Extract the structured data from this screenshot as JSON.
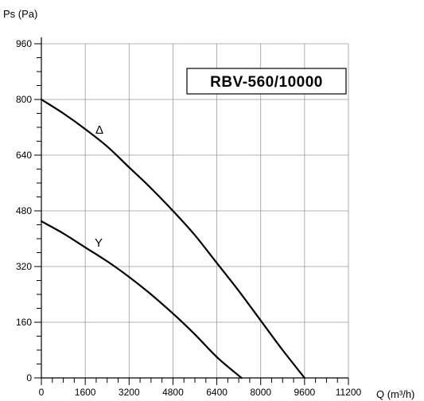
{
  "chart_data": {
    "type": "line",
    "title": "",
    "model": "RBV-560/10000",
    "ylabel": "Ps (Pa)",
    "xlabel": "Q (m³/h)",
    "xlim": [
      0,
      11200
    ],
    "ylim": [
      0,
      960
    ],
    "x_ticks": [
      "0",
      "1600",
      "3200",
      "4800",
      "6400",
      "8000",
      "9600",
      "11200"
    ],
    "y_ticks": [
      "0",
      "160",
      "320",
      "480",
      "640",
      "800",
      "960"
    ],
    "grid": true,
    "series": [
      {
        "name": "Δ",
        "x": [
          0,
          800,
          1600,
          2400,
          3200,
          4000,
          4800,
          5600,
          6400,
          7200,
          8000,
          8800,
          9600
        ],
        "y": [
          800,
          760,
          715,
          665,
          605,
          545,
          480,
          410,
          330,
          250,
          165,
          80,
          0
        ]
      },
      {
        "name": "Y",
        "x": [
          0,
          800,
          1600,
          2400,
          3200,
          4000,
          4800,
          5600,
          6400,
          7300
        ],
        "y": [
          450,
          415,
          375,
          335,
          290,
          240,
          185,
          125,
          60,
          0
        ]
      }
    ]
  }
}
